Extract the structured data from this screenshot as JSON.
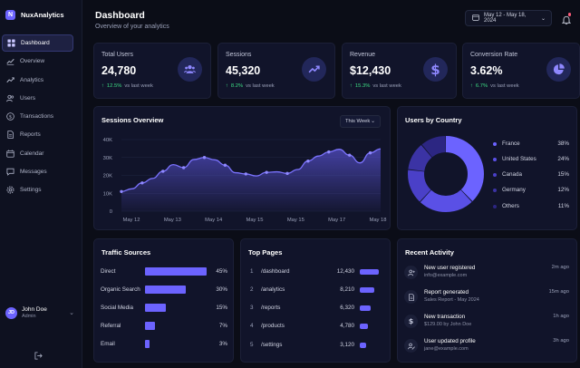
{
  "app": {
    "name": "NuxAnalytics",
    "logo_letter": "N"
  },
  "sidebar": {
    "items": [
      {
        "label": "Dashboard",
        "icon": "grid-icon",
        "active": true
      },
      {
        "label": "Overview",
        "icon": "chart-line-icon"
      },
      {
        "label": "Analytics",
        "icon": "bar-chart-icon"
      },
      {
        "label": "Users",
        "icon": "users-icon"
      },
      {
        "label": "Transactions",
        "icon": "dollar-icon"
      },
      {
        "label": "Reports",
        "icon": "document-icon"
      },
      {
        "label": "Calendar",
        "icon": "calendar-icon"
      },
      {
        "label": "Messages",
        "icon": "message-icon"
      },
      {
        "label": "Settings",
        "icon": "gear-icon"
      }
    ],
    "user": {
      "initials": "JD",
      "name": "John Doe",
      "role": "Admin"
    }
  },
  "header": {
    "title": "Dashboard",
    "subtitle": "Overview of your analytics",
    "date_range": "May 12 - May 18, 2024"
  },
  "stats": [
    {
      "label": "Total Users",
      "value": "24,780",
      "change": "12.5%",
      "period": "vs last week",
      "icon": "users-icon"
    },
    {
      "label": "Sessions",
      "value": "45,320",
      "change": "8.2%",
      "period": "vs last week",
      "icon": "trend-icon"
    },
    {
      "label": "Revenue",
      "value": "$12,430",
      "change": "15.3%",
      "period": "vs last week",
      "icon": "dollar-icon"
    },
    {
      "label": "Conversion Rate",
      "value": "3.62%",
      "change": "6.7%",
      "period": "vs last week",
      "icon": "pie-icon"
    }
  ],
  "sessions_overview": {
    "title": "Sessions Overview",
    "filter": "This Week"
  },
  "chart_data": [
    {
      "type": "area",
      "title": "Sessions Overview",
      "categories": [
        "May 12",
        "May 13",
        "May 14",
        "May 15",
        "May 15",
        "May 17",
        "May 18"
      ],
      "x": [
        0,
        0.5,
        1,
        1.5,
        2,
        2.5,
        3,
        3.5,
        4,
        4.5,
        5,
        5.5,
        6,
        6.5,
        7,
        7.5,
        8,
        8.5,
        9,
        9.5,
        10,
        10.5,
        11,
        11.5,
        12,
        12.5
      ],
      "series": [
        {
          "values": [
            11000,
            12500,
            15800,
            18300,
            22300,
            26000,
            24300,
            28900,
            30000,
            28700,
            25700,
            21500,
            20800,
            19700,
            21700,
            22000,
            21100,
            23300,
            28000,
            30800,
            33100,
            34600,
            31300,
            27000,
            32600,
            34800
          ]
        }
      ],
      "yticks": [
        "0",
        "10K",
        "20K",
        "30K",
        "40K"
      ],
      "ylim": [
        0,
        40000
      ],
      "grid": true
    },
    {
      "type": "pie",
      "title": "Users by Country",
      "categories": [
        "France",
        "United States",
        "Canada",
        "Germany",
        "Others"
      ],
      "values": [
        38,
        24,
        15,
        12,
        11
      ],
      "colors": [
        "#6c63ff",
        "#5a50e6",
        "#4a40c8",
        "#3b33a4",
        "#2c2682"
      ]
    },
    {
      "type": "bar",
      "title": "Traffic Sources",
      "categories": [
        "Direct",
        "Organic Search",
        "Social Media",
        "Referral",
        "Email"
      ],
      "values": [
        45,
        30,
        15,
        7,
        3
      ],
      "labels": [
        "45%",
        "30%",
        "15%",
        "7%",
        "3%"
      ]
    }
  ],
  "users_by_country": {
    "title": "Users by Country"
  },
  "traffic_sources": {
    "title": "Traffic Sources"
  },
  "top_pages": {
    "title": "Top Pages",
    "rows": [
      {
        "num": "1",
        "path": "/dashboard",
        "views": "12,430",
        "share": 1.0
      },
      {
        "num": "2",
        "path": "/analytics",
        "views": "8,210",
        "share": 0.76
      },
      {
        "num": "3",
        "path": "/reports",
        "views": "6,320",
        "share": 0.57
      },
      {
        "num": "4",
        "path": "/products",
        "views": "4,780",
        "share": 0.43
      },
      {
        "num": "5",
        "path": "/settings",
        "views": "3,120",
        "share": 0.33
      }
    ]
  },
  "recent_activity": {
    "title": "Recent Activity",
    "items": [
      {
        "title": "New user registered",
        "sub": "info@example.com",
        "time": "2m ago",
        "icon": "user-plus-icon"
      },
      {
        "title": "Report generated",
        "sub": "Sales Report - May 2024",
        "time": "15m ago",
        "icon": "document-icon"
      },
      {
        "title": "New transaction",
        "sub": "$129.00 by John Doe",
        "time": "1h ago",
        "icon": "dollar-icon"
      },
      {
        "title": "User updated profile",
        "sub": "jane@example.com",
        "time": "3h ago",
        "icon": "user-edit-icon"
      }
    ]
  }
}
